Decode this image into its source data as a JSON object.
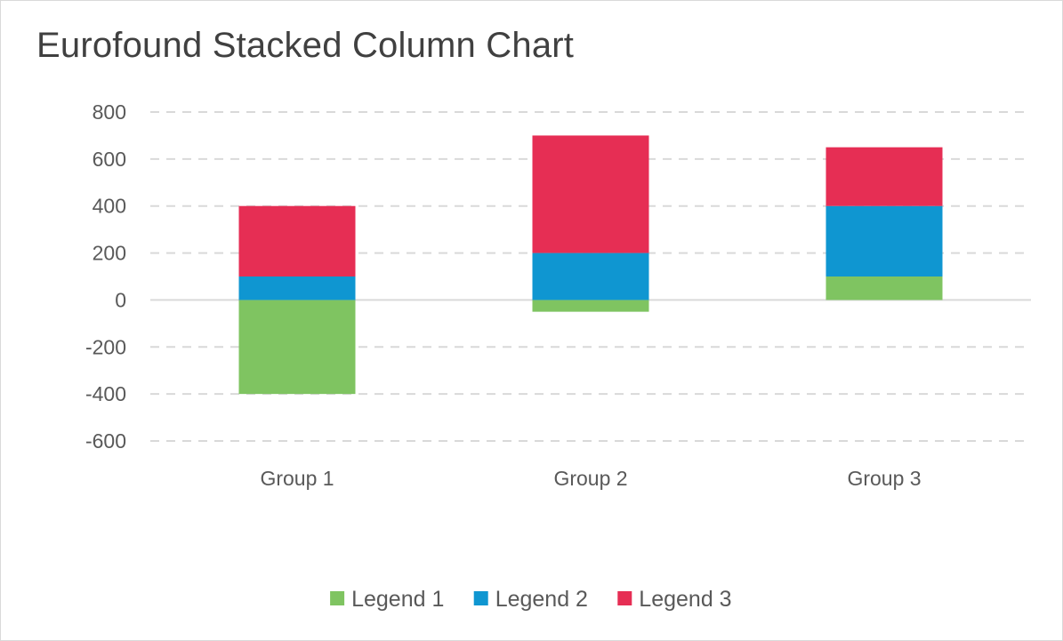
{
  "chart_data": {
    "type": "bar",
    "stacked": true,
    "title": "Eurofound Stacked Column Chart",
    "categories": [
      "Group 1",
      "Group 2",
      "Group 3"
    ],
    "series": [
      {
        "name": "Legend 1",
        "color": "#7fc461",
        "values": [
          -400,
          -50,
          100
        ]
      },
      {
        "name": "Legend 2",
        "color": "#0f96d1",
        "values": [
          100,
          200,
          300
        ]
      },
      {
        "name": "Legend 3",
        "color": "#e62e54",
        "values": [
          300,
          500,
          250
        ]
      }
    ],
    "ylim": [
      -600,
      800
    ],
    "yticks": [
      800,
      600,
      400,
      200,
      0,
      -200,
      -400,
      -600
    ],
    "grid": true,
    "legend_position": "bottom",
    "xlabel": "",
    "ylabel": ""
  }
}
